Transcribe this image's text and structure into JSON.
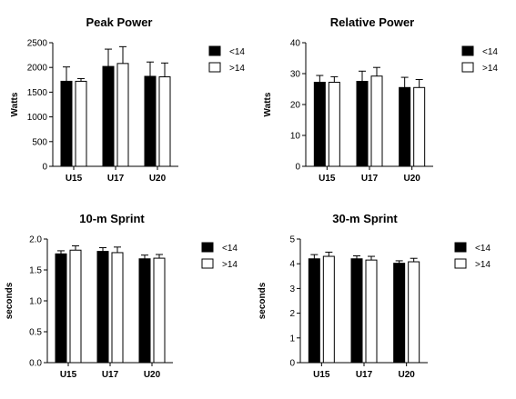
{
  "chart_data": [
    {
      "type": "bar",
      "title": "Peak Power",
      "ylabel": "Watts",
      "categories": [
        "U15",
        "U17",
        "U20"
      ],
      "ylim": [
        0,
        2500
      ],
      "yticks": [
        0,
        500,
        1000,
        1500,
        2000,
        2500
      ],
      "legend_position": "right",
      "series": [
        {
          "name": "<14",
          "color": "#000000",
          "values": [
            1720,
            2020,
            1820
          ],
          "errors": [
            290,
            350,
            290
          ]
        },
        {
          "name": ">14",
          "color": "#ffffff",
          "values": [
            1720,
            2080,
            1810
          ],
          "errors": [
            55,
            340,
            280
          ]
        }
      ]
    },
    {
      "type": "bar",
      "title": "Relative Power",
      "ylabel": "Watts",
      "categories": [
        "U15",
        "U17",
        "U20"
      ],
      "ylim": [
        0,
        40
      ],
      "yticks": [
        0,
        10,
        20,
        30,
        40
      ],
      "legend_position": "right",
      "series": [
        {
          "name": "<14",
          "color": "#000000",
          "values": [
            27.2,
            27.5,
            25.5
          ],
          "errors": [
            2.2,
            3.3,
            3.3
          ]
        },
        {
          "name": ">14",
          "color": "#ffffff",
          "values": [
            27.2,
            29.2,
            25.5
          ],
          "errors": [
            1.8,
            2.8,
            2.6
          ]
        }
      ]
    },
    {
      "type": "bar",
      "title": "10-m Sprint",
      "ylabel": "seconds",
      "categories": [
        "U15",
        "U17",
        "U20"
      ],
      "ylim": [
        0,
        2.0
      ],
      "yticks": [
        "0.0",
        "0.5",
        "1.0",
        "1.5",
        "2.0"
      ],
      "legend_position": "right",
      "series": [
        {
          "name": "<14",
          "color": "#000000",
          "values": [
            1.76,
            1.8,
            1.68
          ],
          "errors": [
            0.05,
            0.06,
            0.06
          ]
        },
        {
          "name": ">14",
          "color": "#ffffff",
          "values": [
            1.82,
            1.78,
            1.69
          ],
          "errors": [
            0.07,
            0.09,
            0.06
          ]
        }
      ]
    },
    {
      "type": "bar",
      "title": "30-m Sprint",
      "ylabel": "seconds",
      "categories": [
        "U15",
        "U17",
        "U20"
      ],
      "ylim": [
        0,
        5
      ],
      "yticks": [
        0,
        1,
        2,
        3,
        4,
        5
      ],
      "legend_position": "right",
      "series": [
        {
          "name": "<14",
          "color": "#000000",
          "values": [
            4.2,
            4.2,
            4.02
          ],
          "errors": [
            0.17,
            0.12,
            0.1
          ]
        },
        {
          "name": ">14",
          "color": "#ffffff",
          "values": [
            4.3,
            4.15,
            4.08
          ],
          "errors": [
            0.17,
            0.15,
            0.14
          ]
        }
      ]
    }
  ]
}
